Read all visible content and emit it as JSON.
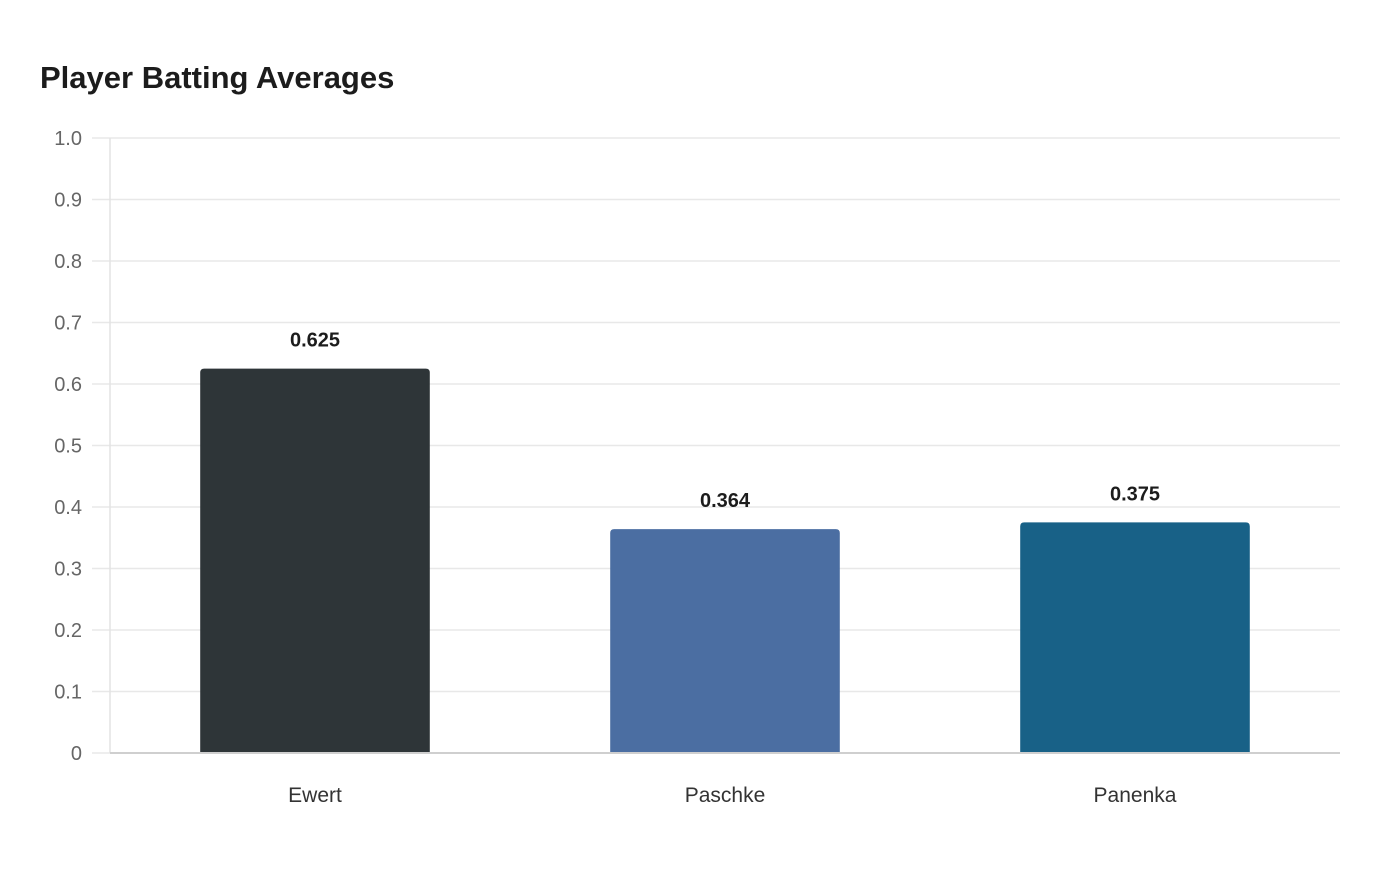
{
  "chart_data": {
    "type": "bar",
    "title": "Player Batting Averages",
    "xlabel": "",
    "ylabel": "",
    "categories": [
      "Ewert",
      "Paschke",
      "Panenka"
    ],
    "values": [
      0.625,
      0.364,
      0.375
    ],
    "value_labels": [
      "0.625",
      "0.364",
      "0.375"
    ],
    "colors": [
      "#2e3538",
      "#4b6ea2",
      "#186187"
    ],
    "ylim": [
      0,
      1.0
    ],
    "yticks": [
      0,
      0.1,
      0.2,
      0.3,
      0.4,
      0.5,
      0.6,
      0.7,
      0.8,
      0.9,
      1.0
    ],
    "ytick_labels": [
      "0",
      "0.1",
      "0.2",
      "0.3",
      "0.4",
      "0.5",
      "0.6",
      "0.7",
      "0.8",
      "0.9",
      "1.0"
    ],
    "grid": true,
    "legend": "none"
  }
}
